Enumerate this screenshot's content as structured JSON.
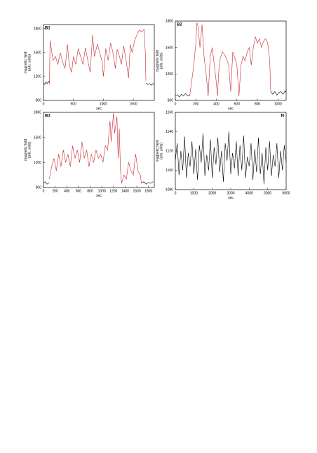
{
  "chart_data": [
    {
      "type": "line",
      "title": "B1",
      "x_label": "sec",
      "y_label": [
        "magnetic field",
        "(arb. units)"
      ],
      "xlim": [
        0,
        1850
      ],
      "ylim": [
        900,
        1850
      ],
      "xticks": [
        0,
        500,
        1000,
        1500
      ],
      "yticks": [
        900,
        1200,
        1500,
        1800
      ],
      "series": [
        {
          "color": "#000000",
          "x": [
            0,
            20,
            40,
            60,
            80,
            100
          ],
          "values": [
            1120,
            1100,
            1130,
            1110,
            1140,
            1120
          ]
        },
        {
          "color": "#c8282d",
          "x": [
            100,
            110,
            130,
            160,
            200,
            240,
            280,
            320,
            360,
            400,
            430,
            470,
            500,
            540,
            580,
            620,
            660,
            700,
            740,
            780,
            820,
            850,
            900,
            940,
            980,
            1000,
            1040,
            1080,
            1120,
            1160,
            1200,
            1230,
            1270,
            1300,
            1340,
            1380,
            1420,
            1450,
            1480,
            1520,
            1560,
            1600,
            1640,
            1680,
            1700,
            1710
          ],
          "values": [
            1100,
            1650,
            1550,
            1400,
            1450,
            1350,
            1500,
            1380,
            1300,
            1600,
            1350,
            1250,
            1450,
            1350,
            1550,
            1450,
            1350,
            1560,
            1400,
            1250,
            1720,
            1450,
            1600,
            1500,
            1380,
            1200,
            1550,
            1400,
            1620,
            1500,
            1300,
            1540,
            1450,
            1350,
            1580,
            1400,
            1180,
            1600,
            1500,
            1650,
            1720,
            1780,
            1760,
            1790,
            1500,
            1150
          ]
        },
        {
          "color": "#000000",
          "x": [
            1710,
            1740,
            1770,
            1800,
            1830,
            1850
          ],
          "values": [
            1120,
            1100,
            1110,
            1090,
            1110,
            1100
          ]
        }
      ]
    },
    {
      "type": "line",
      "title": "B2",
      "x_label": "sec",
      "y_label": [
        "magnetic field",
        "(arb. units)"
      ],
      "xlim": [
        0,
        1080
      ],
      "ylim": [
        900,
        1800
      ],
      "xticks": [
        0,
        200,
        400,
        600,
        800,
        1000
      ],
      "yticks": [
        900,
        1200,
        1500,
        1800
      ],
      "series": [
        {
          "color": "#000000",
          "x": [
            0,
            20,
            40,
            60,
            80,
            100,
            120,
            140
          ],
          "values": [
            950,
            960,
            940,
            970,
            950,
            980,
            950,
            960
          ]
        },
        {
          "color": "#c8282d",
          "x": [
            140,
            180,
            200,
            210,
            220,
            240,
            260,
            280,
            300,
            320,
            340,
            360,
            380,
            400,
            410,
            430,
            460,
            490,
            520,
            540,
            560,
            580,
            600,
            620,
            640,
            660,
            680,
            700,
            720,
            740,
            760,
            780,
            800,
            820,
            840,
            860,
            880,
            900,
            920,
            930
          ],
          "values": [
            950,
            1300,
            1550,
            1780,
            1750,
            1500,
            1760,
            1400,
            1200,
            950,
            1400,
            1500,
            1300,
            1100,
            950,
            1350,
            1450,
            1400,
            1300,
            1000,
            1450,
            1380,
            1300,
            950,
            1300,
            1400,
            1350,
            1450,
            1500,
            1300,
            1500,
            1620,
            1550,
            1600,
            1500,
            1570,
            1600,
            1550,
            1350,
            1000
          ]
        },
        {
          "color": "#000000",
          "x": [
            930,
            950,
            970,
            990,
            1010,
            1030,
            1050,
            1070,
            1080
          ],
          "values": [
            1000,
            970,
            1000,
            960,
            990,
            1000,
            970,
            1010,
            990
          ]
        }
      ]
    },
    {
      "type": "line",
      "title": "B3",
      "x_label": "sec",
      "y_label": [
        "magnetic field",
        "(arb. units)"
      ],
      "xlim": [
        0,
        1900
      ],
      "ylim": [
        900,
        1800
      ],
      "xticks": [
        0,
        200,
        400,
        600,
        800,
        1000,
        1200,
        1400,
        1600,
        1800
      ],
      "yticks": [
        900,
        1200,
        1500,
        1800
      ],
      "series": [
        {
          "color": "#000000",
          "x": [
            0,
            30,
            60,
            100
          ],
          "values": [
            950,
            970,
            940,
            960
          ]
        },
        {
          "color": "#c8282d",
          "x": [
            100,
            140,
            180,
            220,
            260,
            300,
            340,
            380,
            420,
            460,
            500,
            540,
            580,
            620,
            660,
            700,
            740,
            780,
            820,
            860,
            900,
            940,
            980,
            1020,
            1060,
            1100,
            1140,
            1160,
            1200,
            1220,
            1260,
            1280,
            1300,
            1320,
            1340,
            1380,
            1420,
            1460,
            1500,
            1540,
            1580,
            1620,
            1660,
            1680
          ],
          "values": [
            1000,
            1150,
            1250,
            1100,
            1300,
            1150,
            1350,
            1200,
            1300,
            1150,
            1400,
            1250,
            1350,
            1200,
            1450,
            1250,
            1350,
            1150,
            1300,
            1200,
            1350,
            1250,
            1300,
            1200,
            1400,
            1350,
            1700,
            1450,
            1790,
            1550,
            1750,
            1250,
            1600,
            1100,
            950,
            1050,
            1000,
            1200,
            1100,
            1050,
            1300,
            1100,
            1050,
            950
          ]
        },
        {
          "color": "#000000",
          "x": [
            1680,
            1720,
            1760,
            1800,
            1840,
            1880
          ],
          "values": [
            950,
            970,
            940,
            960,
            950,
            970
          ]
        }
      ]
    },
    {
      "type": "line",
      "title": "N",
      "x_label": "sec",
      "y_label": [
        "magnetic field",
        "(arb. units)"
      ],
      "xlim": [
        0,
        6000
      ],
      "ylim": [
        1080,
        1160
      ],
      "xticks": [
        0,
        1000,
        2000,
        3000,
        4000,
        5000,
        6000
      ],
      "yticks": [
        1080,
        1100,
        1120,
        1140,
        1160
      ],
      "series": [
        {
          "color": "#000000",
          "x": [
            0,
            100,
            200,
            300,
            400,
            500,
            600,
            700,
            800,
            900,
            1000,
            1100,
            1200,
            1300,
            1400,
            1500,
            1600,
            1700,
            1800,
            1900,
            2000,
            2100,
            2200,
            2300,
            2400,
            2500,
            2600,
            2700,
            2800,
            2900,
            3000,
            3100,
            3200,
            3300,
            3400,
            3500,
            3600,
            3700,
            3800,
            3900,
            4000,
            4100,
            4200,
            4300,
            4400,
            4500,
            4600,
            4700,
            4800,
            4900,
            5000,
            5100,
            5200,
            5300,
            5400,
            5500,
            5600,
            5700,
            5800,
            5900,
            6000
          ],
          "values": [
            1110,
            1128,
            1095,
            1120,
            1100,
            1135,
            1092,
            1118,
            1104,
            1130,
            1096,
            1122,
            1090,
            1126,
            1108,
            1138,
            1094,
            1116,
            1100,
            1132,
            1092,
            1124,
            1106,
            1134,
            1098,
            1120,
            1088,
            1128,
            1110,
            1140,
            1096,
            1118,
            1102,
            1130,
            1094,
            1126,
            1100,
            1136,
            1092,
            1114,
            1104,
            1128,
            1090,
            1122,
            1098,
            1134,
            1096,
            1118,
            1086,
            1124,
            1100,
            1130,
            1094,
            1116,
            1104,
            1128,
            1092,
            1120,
            1100,
            1126,
            1108
          ]
        }
      ]
    }
  ]
}
